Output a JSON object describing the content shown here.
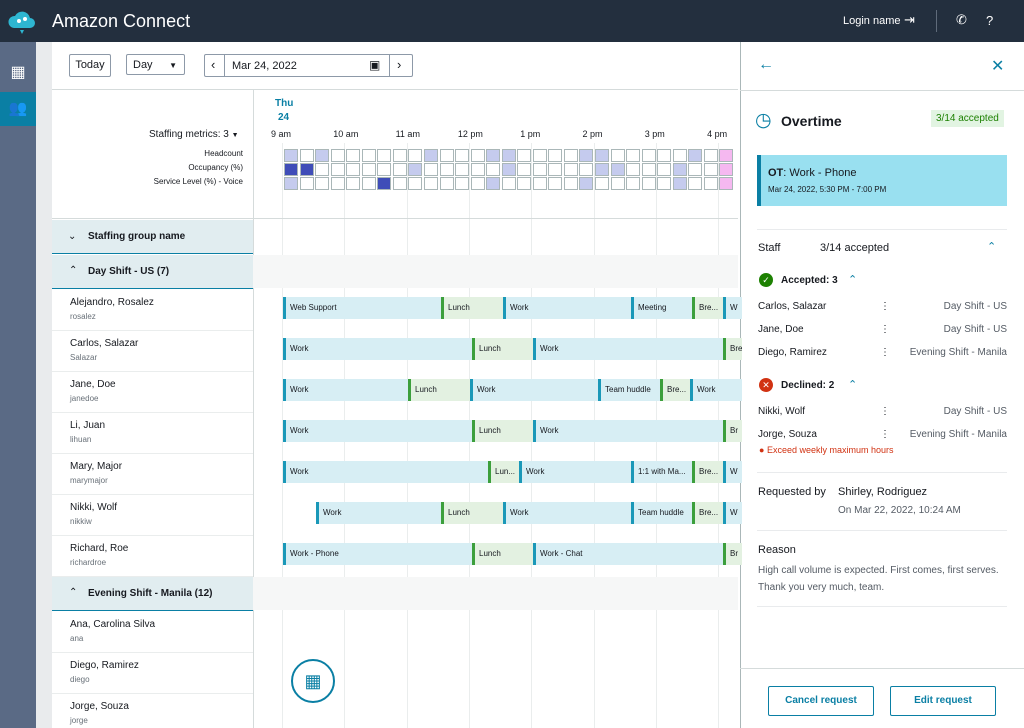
{
  "header": {
    "title": "Amazon Connect",
    "login": "Login name",
    "help": "?"
  },
  "toolbar": {
    "today": "Today",
    "view": "Day",
    "date": "Mar 24, 2022"
  },
  "calendar": {
    "weekday": "Thu",
    "day": "24",
    "staffing_metrics": "Staffing metrics: 3",
    "hours": [
      "9 am",
      "10 am",
      "11 am",
      "12 pm",
      "1 pm",
      "2 pm",
      "3 pm",
      "4 pm"
    ],
    "metrics": [
      "Headcount",
      "Occupancy (%)",
      "Service Level (%) - Voice"
    ]
  },
  "schedule": {
    "group_header": "Staffing group name",
    "groups": [
      {
        "name": "Day Shift - US (7)",
        "agents": [
          {
            "name": "Alejandro, Rosalez",
            "login": "rosalez",
            "shifts": [
              "Web Support",
              "Lunch",
              "Work",
              "Meeting",
              "Bre...",
              "W"
            ]
          },
          {
            "name": "Carlos, Salazar",
            "login": "Salazar",
            "shifts": [
              "Work",
              "Lunch",
              "Work",
              "Bre"
            ]
          },
          {
            "name": "Jane, Doe",
            "login": "janedoe",
            "shifts": [
              "Work",
              "Lunch",
              "Work",
              "Team huddle",
              "Bre...",
              "Work"
            ]
          },
          {
            "name": "Li, Juan",
            "login": "lihuan",
            "shifts": [
              "Work",
              "Lunch",
              "Work",
              "Br"
            ]
          },
          {
            "name": "Mary, Major",
            "login": "marymajor",
            "shifts": [
              "Work",
              "Lun...",
              "Work",
              "1:1 with Ma...",
              "Bre...",
              "W"
            ]
          },
          {
            "name": "Nikki, Wolf",
            "login": "nikkiw",
            "shifts": [
              "Work",
              "Lunch",
              "Work",
              "Team huddle",
              "Bre...",
              "W"
            ]
          },
          {
            "name": "Richard, Roe",
            "login": "richardroe",
            "shifts": [
              "Work - Phone",
              "Lunch",
              "Work - Chat",
              "Br"
            ]
          }
        ]
      },
      {
        "name": "Evening Shift - Manila (12)",
        "agents": [
          {
            "name": "Ana, Carolina Silva",
            "login": "ana",
            "shifts": []
          },
          {
            "name": "Diego, Ramirez",
            "login": "diego",
            "shifts": []
          },
          {
            "name": "Jorge, Souza",
            "login": "jorge",
            "shifts": []
          }
        ]
      }
    ]
  },
  "panel": {
    "title": "Overtime",
    "badge": "3/14 accepted",
    "card": {
      "prefix": "OT",
      "title": ": Work - Phone",
      "time": "Mar 24, 2022, 5:30 PM - 7:00 PM"
    },
    "staff": {
      "label": "Staff",
      "count": "3/14 accepted",
      "accepted": {
        "label": "Accepted: 3",
        "rows": [
          [
            "Carlos, Salazar",
            "Day Shift - US"
          ],
          [
            "Jane, Doe",
            "Day Shift - US"
          ],
          [
            "Diego, Ramirez",
            "Evening Shift - Manila"
          ]
        ]
      },
      "declined": {
        "label": "Declined: 2",
        "rows": [
          [
            "Nikki, Wolf",
            "Day Shift - US"
          ],
          [
            "Jorge, Souza",
            "Evening Shift - Manila"
          ]
        ],
        "error": "Exceed weekly maximum hours"
      }
    },
    "requested": {
      "label": "Requested by",
      "name": "Shirley, Rodriguez",
      "date": "On Mar 22, 2022, 10:24 AM"
    },
    "reason": {
      "label": "Reason",
      "lines": [
        "High call volume is expected. First comes, first serves.",
        "Thank you very much, team."
      ]
    },
    "buttons": {
      "cancel": "Cancel request",
      "edit": "Edit request"
    }
  }
}
